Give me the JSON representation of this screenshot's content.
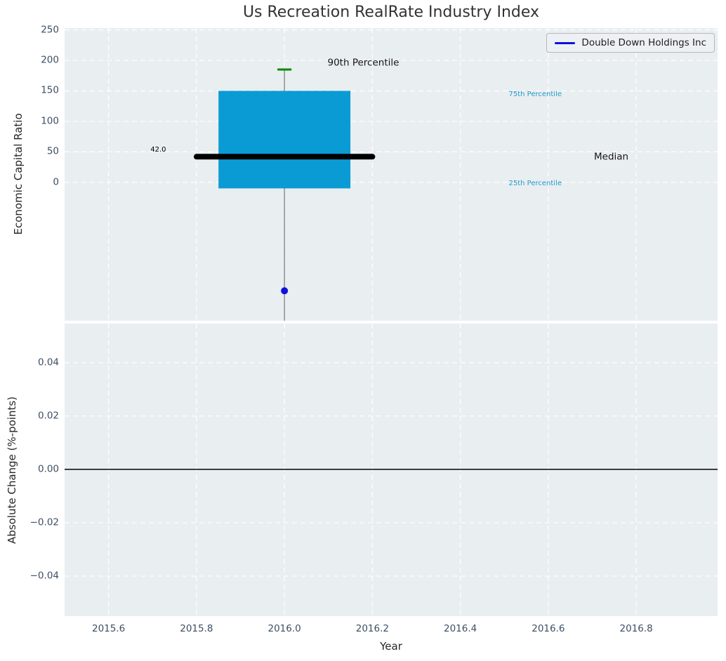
{
  "figure": {
    "title": "Us Recreation RealRate Industry Index",
    "background": "#ffffff",
    "axes_background": "#e9eef1",
    "grid_color": "#ffffff",
    "tick_color": "#3d4e63"
  },
  "legend": {
    "entries": [
      {
        "label": "Double Down Holdings Inc",
        "color": "#1010dc",
        "type": "line"
      }
    ]
  },
  "chart_data": [
    {
      "type": "boxplot",
      "title": "Us Recreation RealRate Industry Index",
      "ylabel": "Economic Capital Ratio",
      "xlabel": "",
      "xlim": [
        2015.5,
        2016.985
      ],
      "ylim": [
        -227,
        253
      ],
      "grid": true,
      "xticks": [
        2015.6,
        2015.8,
        2016.0,
        2016.2,
        2016.4,
        2016.6,
        2016.8
      ],
      "xtick_labels_visible": false,
      "yticks": [
        0,
        50,
        100,
        150,
        200,
        250
      ],
      "ytick_labels": [
        "0",
        "50",
        "100",
        "150",
        "200",
        "250"
      ],
      "legend_position": "upper right",
      "box": {
        "x": 2016.0,
        "box_left": 2015.85,
        "box_right": 2016.15,
        "q1": -10,
        "median": 42,
        "q3": 150,
        "p90": 185,
        "whisker_low_clipped_below_axis": true,
        "box_color": "#0b9bd4",
        "median_color": "#000000",
        "median_span": [
          2015.8,
          2016.2
        ],
        "median_linewidth": 8,
        "whisker_color": "#8a8a8a",
        "p90_cap_color": "#0e8c0e",
        "p90_cap_halfwidth": 0.016
      },
      "company_point": {
        "x": 2016.0,
        "y": -178,
        "color": "#1010dc",
        "radius": 5,
        "label": "Double Down Holdings Inc"
      },
      "median_value_label": "42.0",
      "annotations": [
        {
          "text": "42.0",
          "x": 2015.713,
          "y": 53,
          "color": "#000000",
          "size": 10,
          "anchor": "middle"
        },
        {
          "text": "90th Percentile",
          "x": 2016.098,
          "y": 196,
          "color": "#151515",
          "size": 13.5,
          "anchor": "start"
        },
        {
          "text": "75th Percentile",
          "x": 2016.51,
          "y": 144,
          "color": "#1f99cb",
          "size": 10,
          "anchor": "start"
        },
        {
          "text": "Median",
          "x": 2016.704,
          "y": 41,
          "color": "#151515",
          "size": 13.5,
          "anchor": "start"
        },
        {
          "text": "25th Percentile",
          "x": 2016.51,
          "y": -2,
          "color": "#1f99cb",
          "size": 10,
          "anchor": "start"
        }
      ]
    },
    {
      "type": "line",
      "ylabel": "Absolute Change (%-points)",
      "xlabel": "Year",
      "xlim": [
        2015.5,
        2016.985
      ],
      "ylim": [
        -0.055,
        0.0547
      ],
      "grid": true,
      "xticks": [
        2015.6,
        2015.8,
        2016.0,
        2016.2,
        2016.4,
        2016.6,
        2016.8
      ],
      "xtick_labels": [
        "2015.6",
        "2015.8",
        "2016.0",
        "2016.2",
        "2016.4",
        "2016.6",
        "2016.8"
      ],
      "yticks": [
        0.04,
        0.02,
        0.0,
        -0.02,
        -0.04
      ],
      "ytick_labels": [
        "0.04",
        "0.02",
        "0.00",
        "−0.02",
        "−0.04"
      ],
      "zero_line": {
        "y": 0.0,
        "color": "#000000",
        "linewidth": 1.5
      }
    }
  ]
}
